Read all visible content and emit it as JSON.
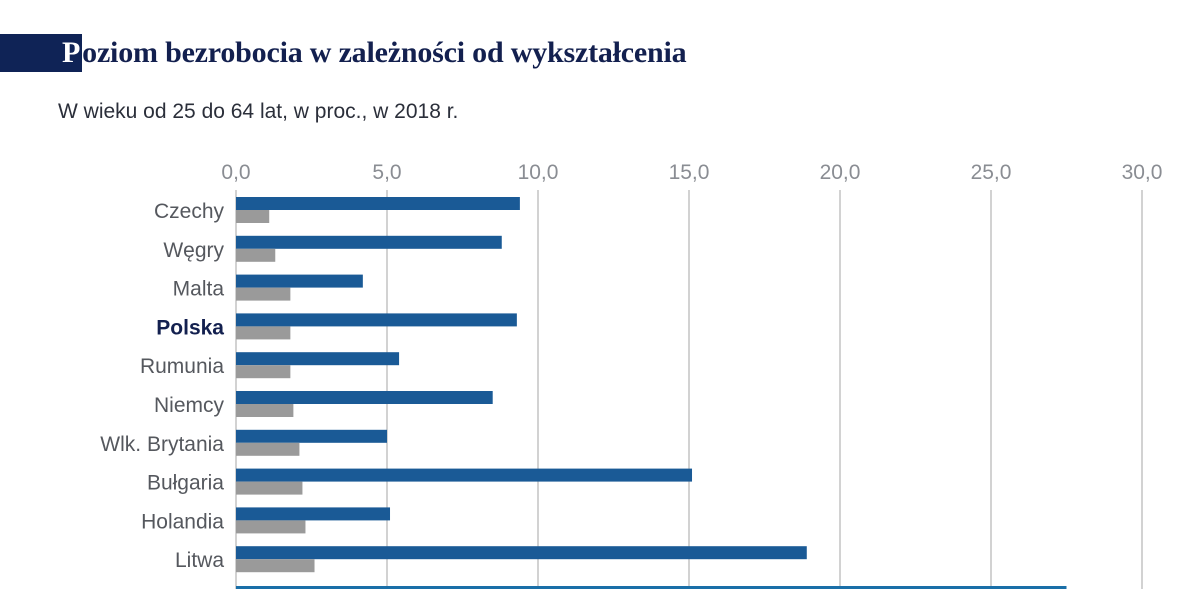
{
  "title": "Poziom bezrobocia w zależności od wykształcenia",
  "subtitle": "W wieku od 25 do 64 lat, w proc., w 2018 r.",
  "colors": {
    "primary_bar": "#1a5a96",
    "secondary_bar": "#9a9a9a",
    "grid": "#c4c4c4",
    "title_bar": "#0f2356",
    "baseline_extra": "#1a6fa8"
  },
  "chart_data": {
    "type": "bar",
    "orientation": "horizontal",
    "xlim": [
      0,
      30
    ],
    "ticks": [
      "0,0",
      "5,0",
      "10,0",
      "15,0",
      "20,0",
      "25,0",
      "30,0"
    ],
    "tick_values": [
      0,
      5,
      10,
      15,
      20,
      25,
      30
    ],
    "grid": true,
    "highlight_category": "Polska",
    "categories": [
      "Czechy",
      "Węgry",
      "Malta",
      "Polska",
      "Rumunia",
      "Niemcy",
      "Wlk. Brytania",
      "Bułgaria",
      "Holandia",
      "Litwa"
    ],
    "series": [
      {
        "values": [
          9.4,
          8.8,
          4.2,
          9.3,
          5.4,
          8.5,
          5.0,
          15.1,
          5.1,
          18.9
        ]
      },
      {
        "values": [
          1.1,
          1.3,
          1.8,
          1.8,
          1.8,
          1.9,
          2.1,
          2.2,
          2.3,
          2.6
        ]
      }
    ],
    "partial_next_bar_value": 27.5
  }
}
